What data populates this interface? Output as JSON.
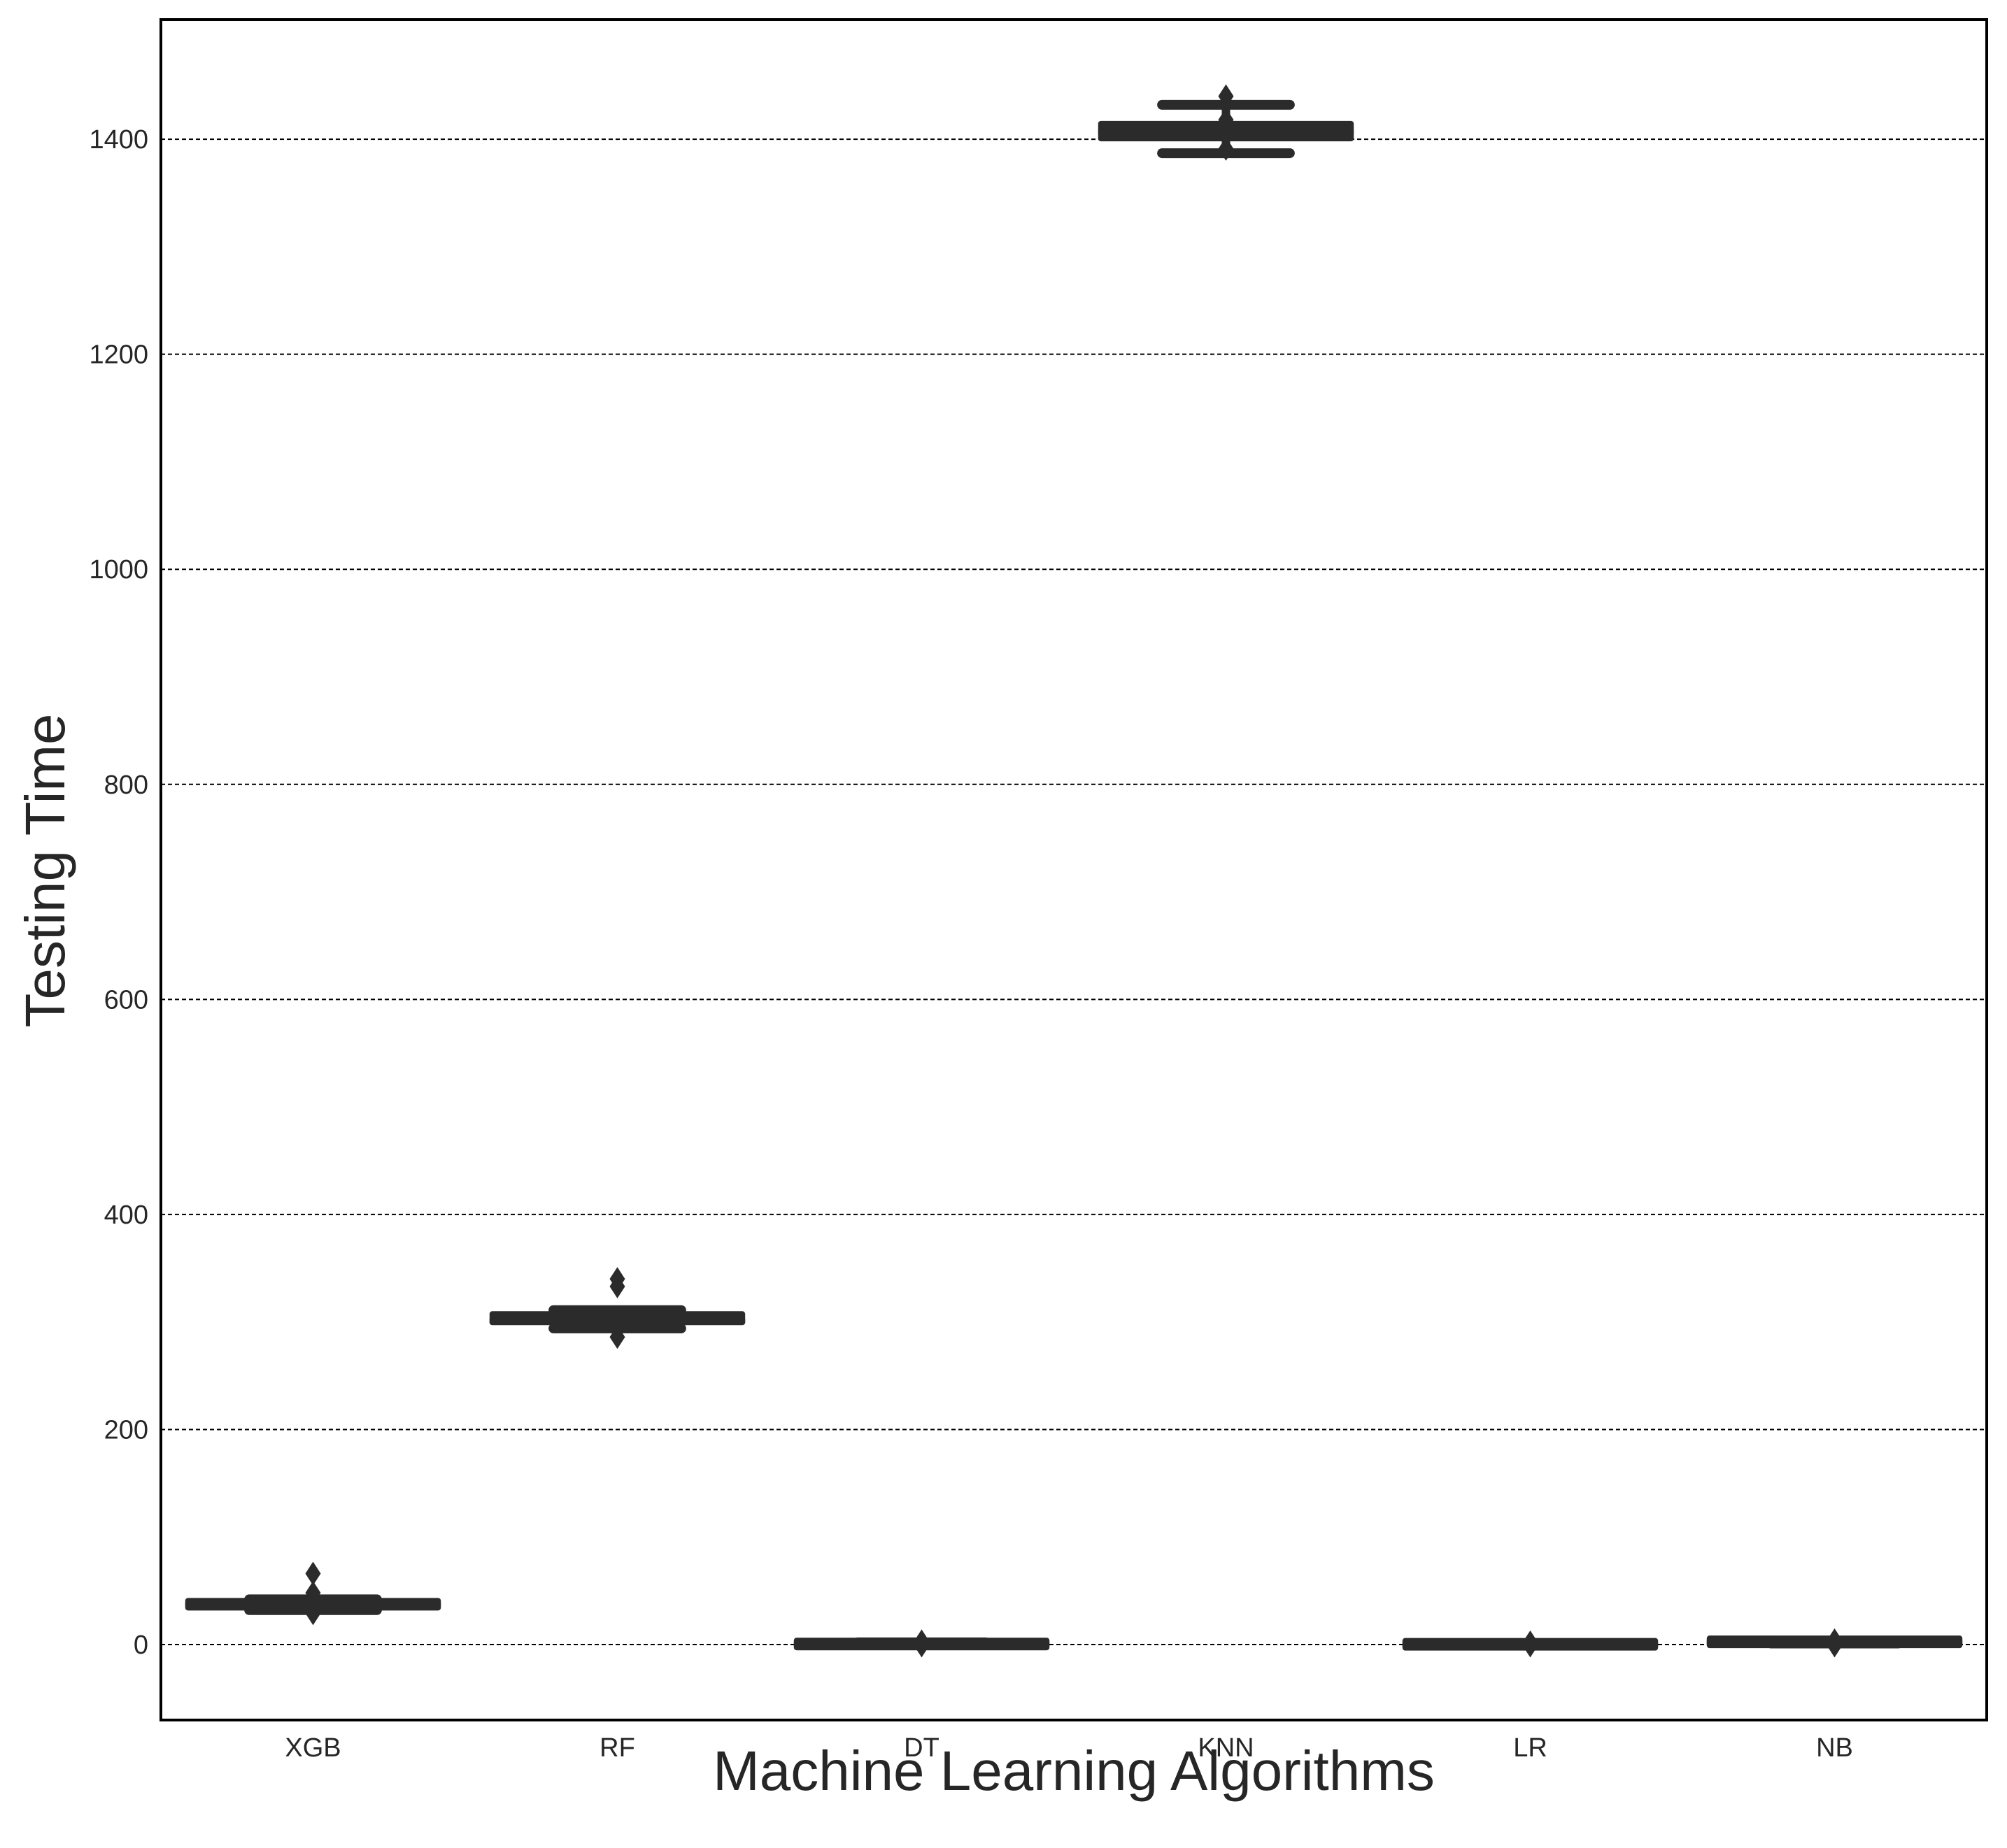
{
  "chart_data": {
    "type": "boxplot",
    "title": "",
    "xlabel": "Machine Learning Algorithms",
    "ylabel": "Testing Time",
    "ylim": [
      -70,
      1510
    ],
    "y_ticks": [
      0,
      200,
      400,
      600,
      800,
      1000,
      1200,
      1400
    ],
    "grid": "horizontal dashed",
    "categories": [
      "XGB",
      "RF",
      "DT",
      "KNN",
      "LR",
      "NB"
    ],
    "boxes": [
      {
        "category": "XGB",
        "whisker_low": 32,
        "q1": 33,
        "median": 37,
        "q3": 42,
        "whisker_high": 42,
        "outliers": [
          29,
          48,
          66
        ]
      },
      {
        "category": "RF",
        "whisker_low": 294,
        "q1": 297,
        "median": 301,
        "q3": 310,
        "whisker_high": 311,
        "outliers": [
          286,
          333,
          340
        ]
      },
      {
        "category": "DT",
        "whisker_low": 0,
        "q1": 0,
        "median": 0.5,
        "q3": 1,
        "whisker_high": 2,
        "outliers": [
          -1,
          3
        ]
      },
      {
        "category": "KNN",
        "whisker_low": 1387,
        "q1": 1398,
        "median": 1407,
        "q3": 1417,
        "whisker_high": 1432,
        "outliers": [
          1391,
          1418,
          1440
        ]
      },
      {
        "category": "LR",
        "whisker_low": 0,
        "q1": 0,
        "median": 0,
        "q3": 0.5,
        "whisker_high": 0.5,
        "outliers": [
          -1,
          2
        ]
      },
      {
        "category": "NB",
        "whisker_low": 1,
        "q1": 2,
        "median": 2,
        "q3": 3,
        "whisker_high": 3,
        "outliers": [
          -1,
          4
        ]
      }
    ],
    "colors": {
      "box": "#2b2b2b",
      "grid": "#000000",
      "frame": "#000000",
      "text": "#262626"
    }
  }
}
